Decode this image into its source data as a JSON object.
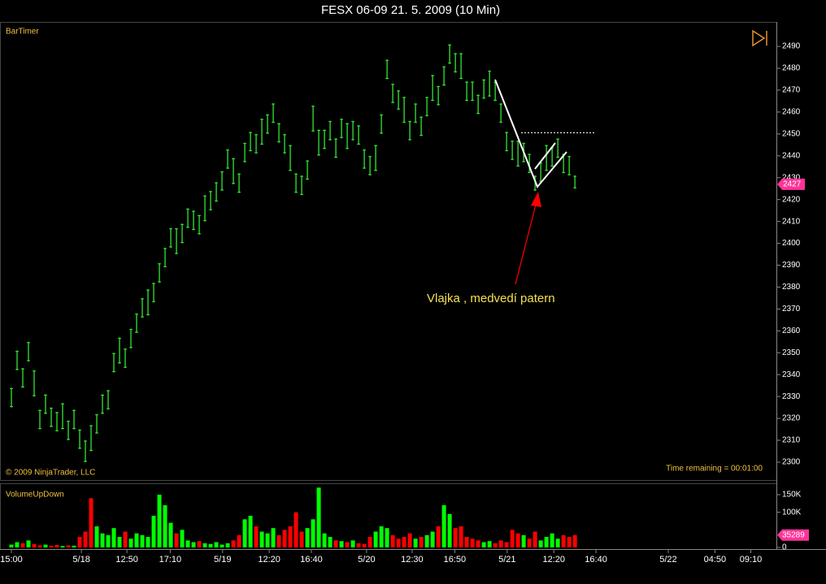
{
  "chart_data": [
    {
      "type": "hlbar",
      "title": "FESX 06-09  21. 5. 2009 (10 Min)",
      "indicator": "BarTimer",
      "copyright": "© 2009 NinjaTrader, LLC",
      "status": "Time remaining = 00:01:00",
      "annotation": "Vlajka , medvedí patern",
      "color": "#33e633",
      "last_price": 2427,
      "high": [
        2334,
        2351,
        2343,
        2355,
        2342,
        2324,
        2331,
        2325,
        2323,
        2327,
        2319,
        2324,
        2315,
        2310,
        2317,
        2322,
        2331,
        2333,
        2350,
        2357,
        2352,
        2361,
        2368,
        2375,
        2379,
        2382,
        2391,
        2398,
        2407,
        2407,
        2409,
        2416,
        2415,
        2413,
        2422,
        2424,
        2428,
        2433,
        2443,
        2439,
        2432,
        2446,
        2451,
        2450,
        2457,
        2459,
        2464,
        2455,
        2450,
        2445,
        2432,
        2431,
        2438,
        2463,
        2452,
        2452,
        2456,
        2448,
        2457,
        2455,
        2456,
        2454,
        2443,
        2440,
        2445,
        2459,
        2484,
        2473,
        2470,
        2467,
        2456,
        2464,
        2458,
        2467,
        2477,
        2472,
        2481,
        2491,
        2487,
        2487,
        2474,
        2474,
        2468,
        2475,
        2479,
        2474,
        2464,
        2451,
        2447,
        2447,
        2446,
        2441,
        2431,
        2437,
        2445,
        2444,
        2448,
        2441,
        2440,
        2431
      ],
      "low": [
        2325,
        2342,
        2334,
        2346,
        2330,
        2315,
        2322,
        2316,
        2314,
        2315,
        2310,
        2315,
        2306,
        2300,
        2305,
        2313,
        2322,
        2324,
        2341,
        2345,
        2343,
        2352,
        2359,
        2366,
        2367,
        2373,
        2382,
        2389,
        2398,
        2395,
        2400,
        2407,
        2406,
        2404,
        2410,
        2415,
        2419,
        2424,
        2434,
        2427,
        2423,
        2437,
        2442,
        2441,
        2445,
        2450,
        2455,
        2446,
        2441,
        2433,
        2423,
        2422,
        2429,
        2451,
        2440,
        2443,
        2447,
        2439,
        2448,
        2443,
        2447,
        2445,
        2434,
        2431,
        2433,
        2450,
        2475,
        2464,
        2461,
        2455,
        2447,
        2455,
        2449,
        2458,
        2465,
        2463,
        2472,
        2482,
        2478,
        2475,
        2465,
        2465,
        2459,
        2466,
        2467,
        2465,
        2455,
        2442,
        2438,
        2435,
        2437,
        2432,
        2424,
        2428,
        2433,
        2435,
        2439,
        2432,
        2431,
        2425
      ],
      "ylim": [
        2292.2,
        2500.8
      ],
      "yticks": [
        2300,
        2310,
        2320,
        2330,
        2340,
        2350,
        2360,
        2370,
        2380,
        2390,
        2400,
        2410,
        2420,
        2430,
        2440,
        2450,
        2460,
        2470,
        2480,
        2490
      ]
    },
    {
      "type": "bar",
      "title": "VolumeUpDown",
      "values": [
        8000,
        15000,
        12000,
        20000,
        10000,
        6000,
        8000,
        5000,
        7000,
        4000,
        6000,
        5000,
        30000,
        45000,
        140000,
        60000,
        40000,
        35000,
        55000,
        30000,
        45000,
        25000,
        40000,
        35000,
        30000,
        90000,
        150000,
        120000,
        70000,
        40000,
        50000,
        20000,
        15000,
        18000,
        12000,
        10000,
        15000,
        8000,
        12000,
        20000,
        35000,
        80000,
        90000,
        60000,
        45000,
        40000,
        55000,
        35000,
        50000,
        60000,
        100000,
        45000,
        55000,
        80000,
        170000,
        40000,
        30000,
        20000,
        18000,
        15000,
        20000,
        12000,
        10000,
        30000,
        45000,
        60000,
        55000,
        35000,
        25000,
        30000,
        40000,
        25000,
        30000,
        35000,
        45000,
        60000,
        120000,
        95000,
        55000,
        60000,
        30000,
        25000,
        20000,
        15000,
        18000,
        12000,
        20000,
        15000,
        50000,
        40000,
        35000,
        25000,
        45000,
        20000,
        30000,
        40000,
        25000,
        35000,
        30000,
        35289
      ],
      "colors": [
        "lime",
        "lime",
        "red",
        "lime",
        "red",
        "red",
        "lime",
        "red",
        "red",
        "lime",
        "red",
        "lime",
        "red",
        "red",
        "red",
        "lime",
        "lime",
        "lime",
        "lime",
        "lime",
        "red",
        "lime",
        "lime",
        "lime",
        "lime",
        "lime",
        "lime",
        "lime",
        "lime",
        "red",
        "lime",
        "lime",
        "lime",
        "red",
        "lime",
        "lime",
        "lime",
        "lime",
        "lime",
        "red",
        "red",
        "lime",
        "lime",
        "red",
        "lime",
        "lime",
        "lime",
        "red",
        "red",
        "red",
        "red",
        "red",
        "lime",
        "lime",
        "lime",
        "lime",
        "lime",
        "red",
        "lime",
        "red",
        "lime",
        "red",
        "red",
        "red",
        "lime",
        "lime",
        "lime",
        "red",
        "red",
        "red",
        "red",
        "lime",
        "red",
        "lime",
        "lime",
        "red",
        "lime",
        "lime",
        "red",
        "red",
        "red",
        "red",
        "red",
        "lime",
        "lime",
        "red",
        "red",
        "red",
        "red",
        "red",
        "lime",
        "red",
        "red",
        "lime",
        "lime",
        "lime",
        "lime",
        "red",
        "red",
        "red"
      ],
      "ylim": [
        -4600,
        182300
      ],
      "yticks": [
        0,
        {
          "value": 100000,
          "label": "100K"
        },
        {
          "value": 150000,
          "label": "150K"
        }
      ],
      "xlim": [
        -2,
        134.4
      ],
      "xticks": [
        {
          "value": 0,
          "label": "15:00"
        },
        {
          "value": 12.3,
          "label": "5/18"
        },
        {
          "value": 20.3,
          "label": "12:50"
        },
        {
          "value": 27.9,
          "label": "17:10"
        },
        {
          "value": 37.1,
          "label": "5/19"
        },
        {
          "value": 45.3,
          "label": "12:20"
        },
        {
          "value": 52.7,
          "label": "16:40"
        },
        {
          "value": 62.4,
          "label": "5/20"
        },
        {
          "value": 70.4,
          "label": "12:30"
        },
        {
          "value": 77.9,
          "label": "16:50"
        },
        {
          "value": 87.1,
          "label": "5/21"
        },
        {
          "value": 95.3,
          "label": "12:20"
        },
        {
          "value": 102.7,
          "label": "16:40"
        },
        {
          "value": 115.4,
          "label": "5/22"
        },
        {
          "value": 123.6,
          "label": "04:50"
        },
        {
          "value": 129.9,
          "label": "09:10"
        }
      ]
    }
  ]
}
